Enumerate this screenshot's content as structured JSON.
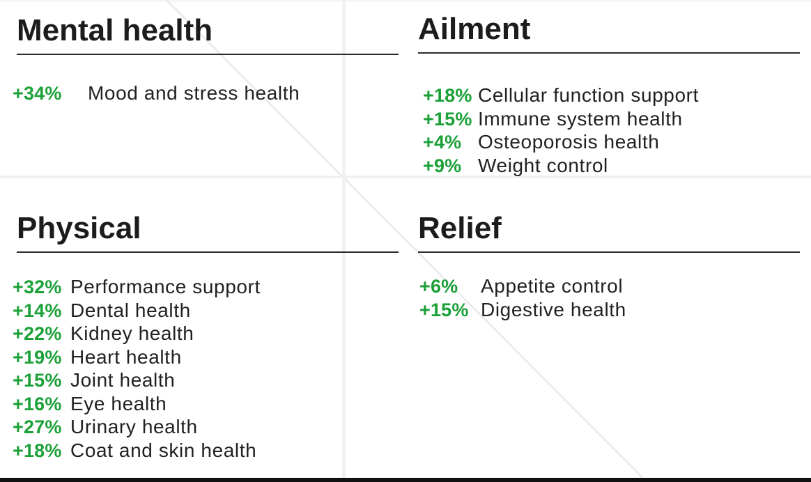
{
  "slide": {
    "type": "health-benefits-summary"
  },
  "colors": {
    "accent_green": "#1CA038",
    "heading_text": "#1C1C1C",
    "label_text": "#212121",
    "heading_rule": "#2B2B2B",
    "quadrant_divider": "#F1F1F1",
    "bottom_bar": "#111111"
  },
  "sections": [
    {
      "id": "mental-health",
      "title": "Mental health",
      "items": [
        {
          "pct": "+34%",
          "label": "Mood and stress health"
        }
      ]
    },
    {
      "id": "ailment",
      "title": "Ailment",
      "items": [
        {
          "pct": "+18%",
          "label": "Cellular function support"
        },
        {
          "pct": "+15%",
          "label": "Immune system health"
        },
        {
          "pct": "+4%",
          "label": "Osteoporosis health"
        },
        {
          "pct": "+9%",
          "label": "Weight control"
        }
      ]
    },
    {
      "id": "physical",
      "title": "Physical",
      "items": [
        {
          "pct": "+32%",
          "label": "Performance support"
        },
        {
          "pct": "+14%",
          "label": "Dental health"
        },
        {
          "pct": "+22%",
          "label": "Kidney health"
        },
        {
          "pct": "+19%",
          "label": "Heart health"
        },
        {
          "pct": "+15%",
          "label": "Joint health"
        },
        {
          "pct": "+16%",
          "label": "Eye health"
        },
        {
          "pct": "+27%",
          "label": "Urinary health"
        },
        {
          "pct": "+18%",
          "label": "Coat and skin health"
        }
      ]
    },
    {
      "id": "relief",
      "title": "Relief",
      "items": [
        {
          "pct": "+6%",
          "label": "Appetite control"
        },
        {
          "pct": "+15%",
          "label": "Digestive health"
        }
      ]
    }
  ]
}
